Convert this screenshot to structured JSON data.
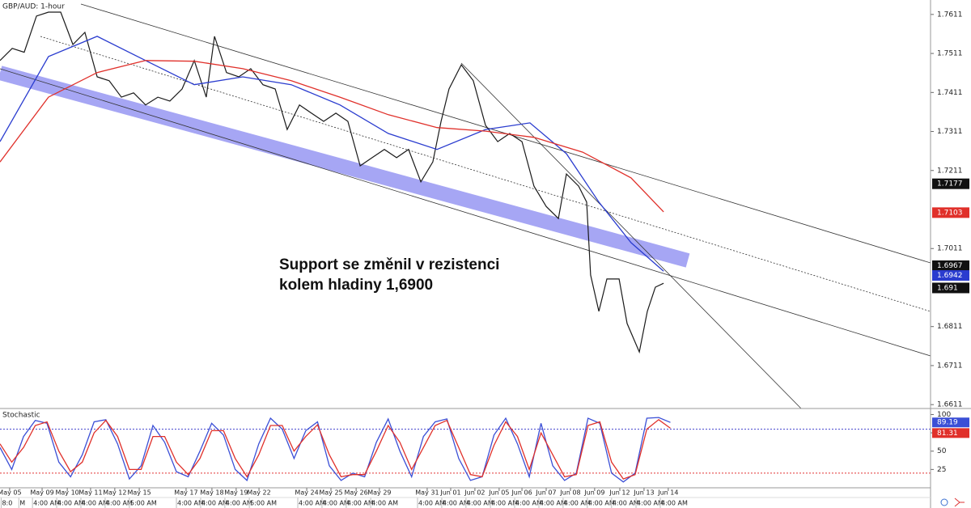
{
  "chart_data": [
    {
      "type": "line",
      "title": "GBP/AUD: 1-hour",
      "annotations": [
        "Support se změnil v rezistenci",
        "kolem hladiny 1,6900"
      ],
      "xlim": [
        0,
        39.56
      ],
      "ylim": [
        1.6601,
        1.7648
      ],
      "yticks": [
        1.7611,
        1.7511,
        1.7411,
        1.7311,
        1.7211,
        1.7011,
        1.6811,
        1.6711,
        1.6611
      ],
      "series": [
        {
          "name": "GBP/AUD",
          "color": "#1a1a1a",
          "x": [
            0,
            0.52,
            1.03,
            1.55,
            2.06,
            2.58,
            3.1,
            3.61,
            4.13,
            4.64,
            5.16,
            5.68,
            6.19,
            6.71,
            7.22,
            7.74,
            8.26,
            8.77,
            9.12,
            9.63,
            10.15,
            10.66,
            11.18,
            11.7,
            12.21,
            12.73,
            13.24,
            13.76,
            14.28,
            14.79,
            15.31,
            15.82,
            16.34,
            16.86,
            17.37,
            17.89,
            18.4,
            18.75,
            19.09,
            19.61,
            20.12,
            20.64,
            21.16,
            21.67,
            22.19,
            22.7,
            23.22,
            23.74,
            24.08,
            24.6,
            24.94,
            25.11,
            25.46,
            25.8,
            26.32,
            26.66,
            27.18,
            27.52,
            27.86,
            28.21
          ],
          "values": [
            1.7493,
            1.7524,
            1.7514,
            1.7607,
            1.7617,
            1.7617,
            1.7534,
            1.7565,
            1.7451,
            1.7441,
            1.7399,
            1.741,
            1.7379,
            1.7399,
            1.7389,
            1.742,
            1.7493,
            1.7399,
            1.7555,
            1.7462,
            1.7451,
            1.7472,
            1.7431,
            1.742,
            1.7316,
            1.7379,
            1.7358,
            1.7337,
            1.7358,
            1.7337,
            1.7223,
            1.7244,
            1.7265,
            1.7244,
            1.7265,
            1.7182,
            1.7233,
            1.7337,
            1.742,
            1.7482,
            1.7441,
            1.7327,
            1.7285,
            1.7306,
            1.7285,
            1.7171,
            1.7119,
            1.7088,
            1.7202,
            1.7171,
            1.713,
            1.6943,
            1.685,
            1.6933,
            1.6933,
            1.6819,
            1.6746,
            1.685,
            1.6912,
            1.6922
          ]
        },
        {
          "name": "MA fast",
          "color": "#2a3ccf",
          "x": [
            0,
            2.06,
            4.13,
            6.19,
            8.26,
            10.32,
            12.38,
            14.45,
            16.51,
            18.58,
            20.64,
            22.53,
            24.08,
            25.46,
            26.83,
            28.21
          ],
          "values": [
            1.7285,
            1.7503,
            1.7555,
            1.7493,
            1.7431,
            1.7451,
            1.7431,
            1.7379,
            1.7306,
            1.7265,
            1.7316,
            1.7333,
            1.7254,
            1.713,
            1.7026,
            1.6953
          ]
        },
        {
          "name": "MA slow",
          "color": "#e0302a",
          "x": [
            0,
            2.06,
            4.13,
            6.19,
            8.26,
            10.32,
            12.38,
            14.45,
            16.51,
            18.58,
            20.64,
            22.7,
            24.77,
            26.83,
            28.21
          ],
          "values": [
            1.7233,
            1.7399,
            1.7462,
            1.7493,
            1.7491,
            1.7472,
            1.7441,
            1.7399,
            1.7354,
            1.7321,
            1.7312,
            1.7296,
            1.7258,
            1.7192,
            1.7105
          ]
        }
      ],
      "price_labels": [
        {
          "value": 1.7177,
          "color": "#111111"
        },
        {
          "value": 1.7103,
          "color": "#e0302a"
        },
        {
          "value": 1.6967,
          "color": "#111111"
        },
        {
          "value": 1.6942,
          "color": "#2a3ccf"
        },
        {
          "value": 1.691,
          "color": "#111111"
        }
      ]
    },
    {
      "type": "line",
      "title": "Stochastic",
      "xlim": [
        0,
        39.56
      ],
      "ylim": [
        0,
        106
      ],
      "yticks": [
        100,
        75,
        50,
        25
      ],
      "levels": [
        {
          "value": 80,
          "color": "#4a4ad0"
        },
        {
          "value": 20,
          "color": "#e33333"
        }
      ],
      "series": [
        {
          "name": "%K",
          "color": "#3b4fd6",
          "x": [
            0,
            0.5,
            1,
            1.5,
            2,
            2.5,
            3,
            3.5,
            4,
            4.5,
            5,
            5.5,
            6,
            6.5,
            7,
            7.5,
            8,
            8.5,
            9,
            9.5,
            10,
            10.5,
            11,
            11.5,
            12,
            12.5,
            13,
            13.5,
            14,
            14.5,
            15,
            15.5,
            16,
            16.5,
            17,
            17.5,
            18,
            18.5,
            19,
            19.5,
            20,
            20.5,
            21,
            21.5,
            22,
            22.5,
            23,
            23.5,
            24,
            24.5,
            25,
            25.5,
            26,
            26.5,
            27,
            27.5,
            28,
            28.5
          ],
          "values": [
            55,
            25,
            70,
            92,
            88,
            35,
            15,
            45,
            90,
            93,
            60,
            12,
            30,
            85,
            62,
            22,
            15,
            50,
            88,
            72,
            25,
            10,
            60,
            95,
            80,
            40,
            78,
            90,
            30,
            10,
            20,
            15,
            62,
            94,
            50,
            15,
            70,
            90,
            94,
            40,
            10,
            15,
            72,
            95,
            60,
            15,
            88,
            30,
            10,
            20,
            95,
            88,
            20,
            8,
            20,
            95,
            96,
            89.19
          ]
        },
        {
          "name": "%D",
          "color": "#e0302a",
          "x": [
            0,
            0.5,
            1,
            1.5,
            2,
            2.5,
            3,
            3.5,
            4,
            4.5,
            5,
            5.5,
            6,
            6.5,
            7,
            7.5,
            8,
            8.5,
            9,
            9.5,
            10,
            10.5,
            11,
            11.5,
            12,
            12.5,
            13,
            13.5,
            14,
            14.5,
            15,
            15.5,
            16,
            16.5,
            17,
            17.5,
            18,
            18.5,
            19,
            19.5,
            20,
            20.5,
            21,
            21.5,
            22,
            22.5,
            23,
            23.5,
            24,
            24.5,
            25,
            25.5,
            26,
            26.5,
            27,
            27.5,
            28,
            28.5
          ],
          "values": [
            60,
            35,
            55,
            85,
            90,
            50,
            22,
            35,
            75,
            92,
            70,
            25,
            25,
            70,
            70,
            35,
            18,
            40,
            78,
            78,
            40,
            15,
            45,
            85,
            85,
            50,
            70,
            86,
            45,
            15,
            18,
            18,
            50,
            85,
            62,
            25,
            55,
            85,
            92,
            55,
            18,
            15,
            58,
            90,
            70,
            25,
            75,
            45,
            15,
            18,
            85,
            90,
            35,
            12,
            18,
            80,
            93,
            81.31
          ]
        }
      ],
      "xticks": [
        {
          "value": 0.41,
          "label": "May 05"
        },
        {
          "value": 1.79,
          "label": "May 09"
        },
        {
          "value": 2.86,
          "label": "May 10"
        },
        {
          "value": 3.85,
          "label": "May 11"
        },
        {
          "value": 4.88,
          "label": "May 12"
        },
        {
          "value": 5.92,
          "label": "May 15"
        },
        {
          "value": 7.91,
          "label": "May 17"
        },
        {
          "value": 9.01,
          "label": "May 18"
        },
        {
          "value": 10.04,
          "label": "May 19"
        },
        {
          "value": 11.01,
          "label": "May 22"
        },
        {
          "value": 13.04,
          "label": "May 24"
        },
        {
          "value": 14.07,
          "label": "May 25"
        },
        {
          "value": 15.14,
          "label": "May 26"
        },
        {
          "value": 16.13,
          "label": "May 29"
        },
        {
          "value": 18.16,
          "label": "May 31"
        },
        {
          "value": 19.16,
          "label": "Jun 01"
        },
        {
          "value": 20.19,
          "label": "Jun 02"
        },
        {
          "value": 21.22,
          "label": "Jun 05"
        },
        {
          "value": 22.19,
          "label": "Jun 06"
        },
        {
          "value": 23.22,
          "label": "Jun 07"
        },
        {
          "value": 24.25,
          "label": "Jun 08"
        },
        {
          "value": 25.28,
          "label": "Jun 09"
        },
        {
          "value": 26.35,
          "label": "Jun 12"
        },
        {
          "value": 27.38,
          "label": "Jun 13"
        },
        {
          "value": 28.41,
          "label": "Jun 14"
        }
      ],
      "session_ticks": [
        {
          "value": 0.05,
          "label": "8:0"
        },
        {
          "value": 0.8,
          "label": "M"
        },
        {
          "value": 1.38,
          "label": "4:00 AM"
        },
        {
          "value": 2.41,
          "label": "4:00 AM"
        },
        {
          "value": 3.44,
          "label": "4:00 AM"
        },
        {
          "value": 4.47,
          "label": "4:00 AM"
        },
        {
          "value": 5.5,
          "label": "5:00 AM"
        },
        {
          "value": 7.5,
          "label": "4:00 AM"
        },
        {
          "value": 8.53,
          "label": "4:00 AM"
        },
        {
          "value": 9.56,
          "label": "4:00 AM"
        },
        {
          "value": 10.6,
          "label": "5:00 AM"
        },
        {
          "value": 12.66,
          "label": "4:00 AM"
        },
        {
          "value": 13.69,
          "label": "4:00 AM"
        },
        {
          "value": 14.72,
          "label": "4:00 AM"
        },
        {
          "value": 15.76,
          "label": "4:00 AM"
        },
        {
          "value": 17.75,
          "label": "4:00 AM"
        },
        {
          "value": 18.78,
          "label": "4:00 AM"
        },
        {
          "value": 19.81,
          "label": "4:00 AM"
        },
        {
          "value": 20.85,
          "label": "4:00 AM"
        },
        {
          "value": 21.88,
          "label": "4:00 AM"
        },
        {
          "value": 22.91,
          "label": "4:00 AM"
        },
        {
          "value": 23.94,
          "label": "4:00 AM"
        },
        {
          "value": 24.97,
          "label": "4:00 AM"
        },
        {
          "value": 26.0,
          "label": "4:00 AM"
        },
        {
          "value": 27.04,
          "label": "4:00 AM"
        },
        {
          "value": 28.07,
          "label": "4:00 AM"
        }
      ]
    }
  ]
}
